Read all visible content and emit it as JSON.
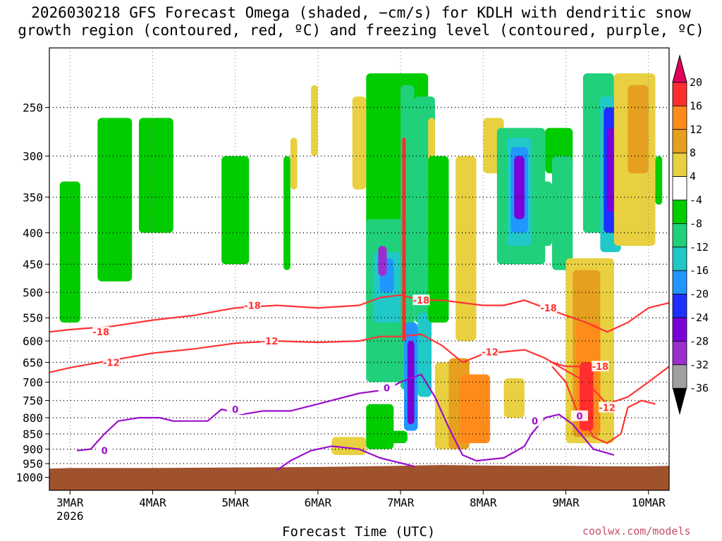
{
  "chart_data": {
    "type": "time-height cross section",
    "title_line1": "2026030218 GFS Forecast Omega (shaded, −cm/s) for KDLH with dendritic snow",
    "title_line2": "growth region (contoured, red, ºC) and freezing level (contoured, purple, ºC)",
    "xlabel": "Forecast Time (UTC)",
    "x_hours_range": [
      -6,
      174
    ],
    "y_range_hpa": [
      200,
      1050
    ],
    "y_ticks": [
      250,
      300,
      350,
      400,
      450,
      500,
      550,
      600,
      650,
      700,
      750,
      800,
      850,
      900,
      950,
      1000
    ],
    "x_ticks": [
      {
        "hour": 0,
        "label": "3MAR",
        "sub": "2026"
      },
      {
        "hour": 24,
        "label": "4MAR"
      },
      {
        "hour": 48,
        "label": "5MAR"
      },
      {
        "hour": 72,
        "label": "6MAR"
      },
      {
        "hour": 96,
        "label": "7MAR"
      },
      {
        "hour": 120,
        "label": "8MAR"
      },
      {
        "hour": 144,
        "label": "9MAR"
      },
      {
        "hour": 168,
        "label": "10MAR"
      }
    ],
    "colorbar": {
      "labels": [
        "20",
        "16",
        "12",
        "8",
        "4",
        "-4",
        "-8",
        "-12",
        "-16",
        "-20",
        "-24",
        "-28",
        "-32",
        "-36"
      ],
      "colors": [
        "#ff2d2d",
        "#ff8c1a",
        "#e6a020",
        "#e8d040",
        "#ffffff",
        "#00cc00",
        "#20d07a",
        "#20c8c8",
        "#2196ff",
        "#1e30ff",
        "#7a00d8",
        "#9a2fd0",
        "#a0a0a0"
      ],
      "top_arrow_color": "#e0005a",
      "bottom_arrow_color": "#000000"
    },
    "contours": [
      {
        "name": "-18C isotherm (upper)",
        "label": "-18",
        "color": "#ff3333",
        "points": [
          [
            -6,
            580
          ],
          [
            0,
            575
          ],
          [
            12,
            568
          ],
          [
            24,
            555
          ],
          [
            36,
            545
          ],
          [
            48,
            530
          ],
          [
            60,
            525
          ],
          [
            72,
            530
          ],
          [
            84,
            525
          ],
          [
            90,
            510
          ],
          [
            96,
            505
          ],
          [
            102,
            515
          ],
          [
            108,
            515
          ],
          [
            114,
            520
          ],
          [
            120,
            525
          ],
          [
            126,
            525
          ],
          [
            132,
            515
          ],
          [
            138,
            530
          ],
          [
            144,
            545
          ],
          [
            150,
            560
          ],
          [
            156,
            580
          ],
          [
            162,
            560
          ],
          [
            168,
            530
          ],
          [
            174,
            520
          ]
        ],
        "label_at": [
          [
            9,
            580
          ],
          [
            53,
            525
          ],
          [
            102,
            515
          ],
          [
            139,
            530
          ]
        ]
      },
      {
        "name": "-12C isotherm (upper)",
        "label": "-12",
        "color": "#ff3333",
        "points": [
          [
            -6,
            675
          ],
          [
            0,
            663
          ],
          [
            12,
            645
          ],
          [
            24,
            628
          ],
          [
            36,
            618
          ],
          [
            48,
            605
          ],
          [
            60,
            600
          ],
          [
            72,
            603
          ],
          [
            84,
            600
          ],
          [
            90,
            590
          ],
          [
            96,
            590
          ],
          [
            102,
            585
          ],
          [
            108,
            610
          ],
          [
            114,
            650
          ],
          [
            120,
            630
          ],
          [
            126,
            625
          ],
          [
            132,
            620
          ],
          [
            138,
            640
          ],
          [
            144,
            670
          ],
          [
            150,
            700
          ],
          [
            156,
            760
          ],
          [
            162,
            740
          ],
          [
            168,
            700
          ],
          [
            174,
            660
          ]
        ],
        "label_at": [
          [
            12,
            650
          ],
          [
            58,
            600
          ],
          [
            122,
            625
          ]
        ]
      },
      {
        "name": "-18C isotherm (lower)",
        "label": "-18",
        "color": "#ff3333",
        "points": [
          [
            140,
            650
          ],
          [
            144,
            660
          ],
          [
            148,
            660
          ],
          [
            152,
            660
          ]
        ],
        "label_at": [
          [
            154,
            660
          ]
        ]
      },
      {
        "name": "-12C isotherm (lower)",
        "label": "-12",
        "color": "#ff3333",
        "points": [
          [
            140,
            660
          ],
          [
            144,
            700
          ],
          [
            148,
            800
          ],
          [
            150,
            820
          ],
          [
            152,
            860
          ],
          [
            156,
            880
          ],
          [
            160,
            850
          ],
          [
            162,
            770
          ],
          [
            166,
            750
          ],
          [
            170,
            760
          ]
        ],
        "label_at": [
          [
            156,
            770
          ]
        ]
      },
      {
        "name": "0C freezing level",
        "label": "0",
        "color": "#9b0fc9",
        "points": [
          [
            2,
            905
          ],
          [
            6,
            900
          ],
          [
            10,
            850
          ],
          [
            14,
            810
          ],
          [
            20,
            800
          ],
          [
            26,
            800
          ],
          [
            30,
            810
          ],
          [
            40,
            810
          ],
          [
            44,
            775
          ],
          [
            50,
            790
          ],
          [
            56,
            780
          ],
          [
            64,
            780
          ],
          [
            72,
            760
          ],
          [
            84,
            730
          ],
          [
            92,
            720
          ],
          [
            96,
            700
          ],
          [
            102,
            680
          ],
          [
            106,
            740
          ],
          [
            110,
            830
          ],
          [
            114,
            920
          ],
          [
            118,
            940
          ],
          [
            126,
            930
          ],
          [
            132,
            890
          ],
          [
            134,
            850
          ],
          [
            138,
            800
          ],
          [
            142,
            790
          ],
          [
            146,
            820
          ],
          [
            152,
            900
          ],
          [
            158,
            920
          ]
        ],
        "label_at": [
          [
            10,
            905
          ],
          [
            48,
            775
          ],
          [
            92,
            715
          ],
          [
            135,
            810
          ],
          [
            148,
            795
          ]
        ]
      },
      {
        "name": "0C freezing level (low branch)",
        "label": "0",
        "color": "#9b0fc9",
        "points": [
          [
            60,
            975
          ],
          [
            64,
            940
          ],
          [
            70,
            905
          ],
          [
            76,
            890
          ],
          [
            84,
            900
          ],
          [
            90,
            930
          ],
          [
            100,
            960
          ]
        ],
        "label_at": []
      }
    ],
    "omega_features": [
      {
        "kind": "rising",
        "value_cm_s": 20,
        "hours": [
          147,
          153
        ],
        "p": [
          650,
          840
        ]
      },
      {
        "kind": "rising",
        "value_cm_s": 12,
        "hours": [
          145,
          155
        ],
        "p": [
          450,
          880
        ]
      },
      {
        "kind": "rising",
        "value_cm_s": 12,
        "hours": [
          150,
          162
        ],
        "p": [
          220,
          420
        ]
      },
      {
        "kind": "rising",
        "value_cm_s": 8,
        "hours": [
          100,
          122
        ],
        "p": [
          650,
          900
        ]
      },
      {
        "kind": "sinking",
        "value_cm_s": -24,
        "hours": [
          156,
          160
        ],
        "p": [
          250,
          400
        ]
      },
      {
        "kind": "sinking",
        "value_cm_s": -28,
        "hours": [
          90,
          92
        ],
        "p": [
          420,
          470
        ]
      },
      {
        "kind": "sinking",
        "value_cm_s": -20,
        "hours": [
          95,
          100
        ],
        "p": [
          560,
          840
        ]
      },
      {
        "kind": "sinking",
        "value_cm_s": -24,
        "hours": [
          130,
          132
        ],
        "p": [
          300,
          380
        ]
      }
    ]
  },
  "footer": {
    "credit": "coolwx.com/models"
  }
}
